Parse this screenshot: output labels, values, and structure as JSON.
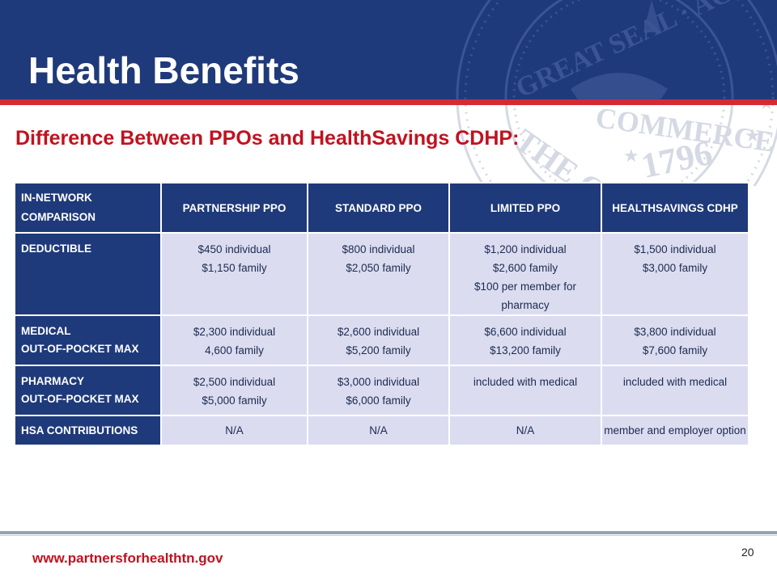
{
  "slide": {
    "title": "Health Benefits",
    "subtitle": "Difference Between PPOs and HealthSavings CDHP:",
    "footer_url": "www.partnersforhealthtn.gov",
    "page_number": "20"
  },
  "seal": {
    "text_top": "GREAT SEAL · AGRICULTURE",
    "text_bottom": "COMMERCE",
    "year": "1796",
    "letters": "THE GR"
  },
  "table": {
    "corner": [
      "IN-NETWORK",
      "COMPARISON"
    ],
    "columns": [
      "PARTNERSHIP PPO",
      "STANDARD PPO",
      "LIMITED PPO",
      "HEALTHSAVINGS CDHP"
    ],
    "rows": [
      {
        "label": [
          "DEDUCTIBLE"
        ],
        "cells": [
          [
            "$450 individual",
            "$1,150 family"
          ],
          [
            "$800 individual",
            "$2,050 family"
          ],
          [
            "$1,200 individual",
            "$2,600 family",
            "$100 per member for pharmacy"
          ],
          [
            "$1,500 individual",
            "$3,000 family"
          ]
        ]
      },
      {
        "label": [
          "MEDICAL",
          "OUT-OF-POCKET MAX"
        ],
        "cells": [
          [
            "$2,300 individual",
            "4,600 family"
          ],
          [
            "$2,600 individual",
            "$5,200 family"
          ],
          [
            "$6,600 individual",
            "$13,200 family"
          ],
          [
            "$3,800 individual",
            "$7,600 family"
          ]
        ]
      },
      {
        "label": [
          "PHARMACY",
          "OUT-OF-POCKET MAX"
        ],
        "cells": [
          [
            "$2,500 individual",
            "$5,000 family"
          ],
          [
            "$3,000 individual",
            "$6,000 family"
          ],
          [
            "included with medical"
          ],
          [
            "included with medical"
          ]
        ]
      },
      {
        "label": [
          "HSA CONTRIBUTIONS"
        ],
        "cells": [
          [
            "N/A"
          ],
          [
            "N/A"
          ],
          [
            "N/A"
          ],
          [
            "member and employer option"
          ]
        ]
      }
    ]
  },
  "colors": {
    "navy": "#1f3a7a",
    "red_bar": "#d42a35",
    "red_text": "#c1121f",
    "cell_bg": "#dcdcf0"
  }
}
